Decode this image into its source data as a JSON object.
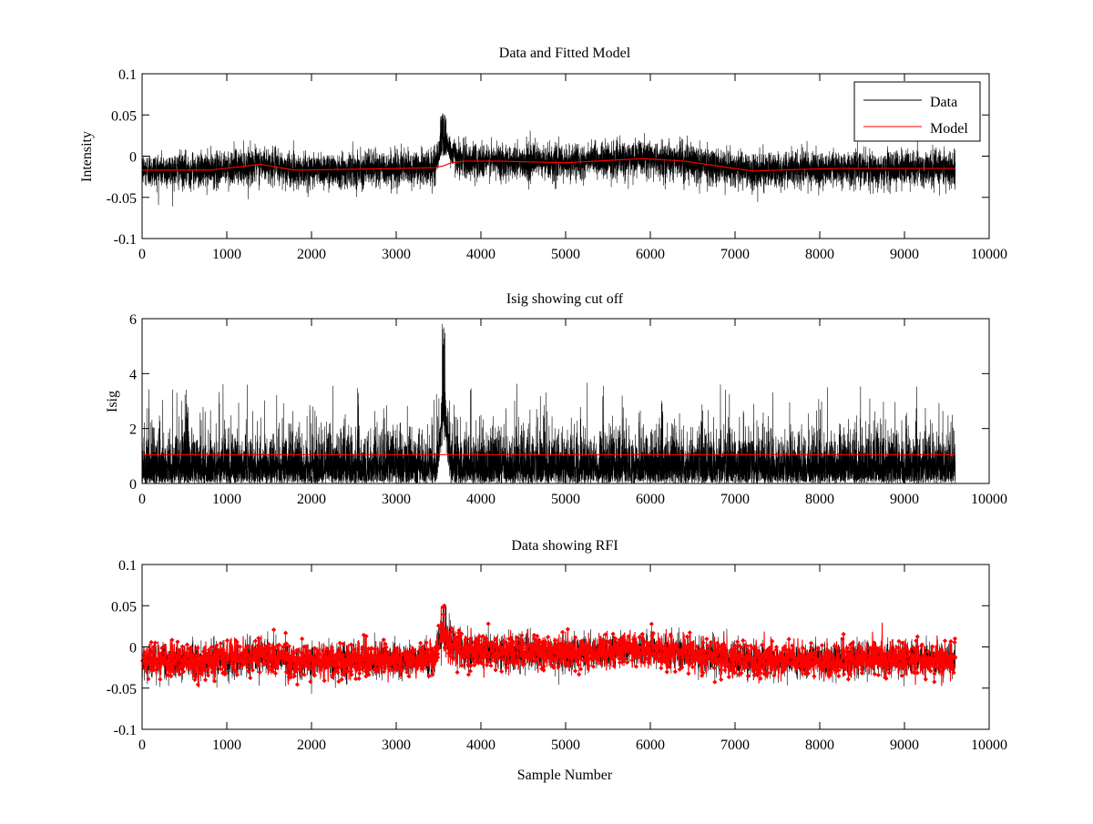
{
  "chart_data": [
    {
      "type": "line",
      "title": "Data and Fitted Model",
      "xlabel": "",
      "ylabel": "Intensity",
      "xlim": [
        0,
        10000
      ],
      "ylim": [
        -0.1,
        0.1
      ],
      "x_ticks": [
        0,
        1000,
        2000,
        3000,
        4000,
        5000,
        6000,
        7000,
        8000,
        9000,
        10000
      ],
      "x_tick_labels": [
        "0",
        "1000",
        "2000",
        "3000",
        "4000",
        "5000",
        "6000",
        "7000",
        "8000",
        "9000",
        "10000"
      ],
      "y_ticks": [
        -0.1,
        -0.05,
        0,
        0.05,
        0.1
      ],
      "y_tick_labels": [
        "-0.1",
        "-0.05",
        "0",
        "0.05",
        "0.1"
      ],
      "grid": false,
      "legend_position": "top-right",
      "series": [
        {
          "name": "Data",
          "color": "#000000",
          "x_range": [
            0,
            9600
          ],
          "n_points": 9600,
          "spread": 0.015,
          "baseline_x": [
            0,
            800,
            1400,
            1800,
            2400,
            3000,
            3450,
            3550,
            3650,
            3800,
            4200,
            5000,
            5900,
            6400,
            6800,
            7200,
            7800,
            8200,
            9000,
            9600
          ],
          "baseline_y": [
            -0.017,
            -0.017,
            -0.01,
            -0.017,
            -0.016,
            -0.015,
            -0.014,
            0.02,
            0.005,
            -0.006,
            -0.006,
            -0.008,
            -0.003,
            -0.006,
            -0.012,
            -0.018,
            -0.016,
            -0.015,
            -0.015,
            -0.015
          ],
          "peak_x": 3560,
          "peak_y": 0.053
        },
        {
          "name": "Model",
          "color": "#ff0000",
          "x": [
            0,
            800,
            1400,
            1800,
            2400,
            3000,
            3450,
            3550,
            3650,
            3800,
            4200,
            5000,
            5900,
            6400,
            6800,
            7200,
            7800,
            8200,
            9000,
            9600
          ],
          "y": [
            -0.017,
            -0.017,
            -0.01,
            -0.017,
            -0.016,
            -0.015,
            -0.014,
            -0.012,
            -0.008,
            -0.006,
            -0.006,
            -0.008,
            -0.003,
            -0.006,
            -0.012,
            -0.018,
            -0.016,
            -0.015,
            -0.015,
            -0.015
          ]
        }
      ]
    },
    {
      "type": "line",
      "title": "Isig showing cut off",
      "xlabel": "",
      "ylabel": "Isig",
      "xlim": [
        0,
        10000
      ],
      "ylim": [
        0,
        6
      ],
      "x_ticks": [
        0,
        1000,
        2000,
        3000,
        4000,
        5000,
        6000,
        7000,
        8000,
        9000,
        10000
      ],
      "x_tick_labels": [
        "0",
        "1000",
        "2000",
        "3000",
        "4000",
        "5000",
        "6000",
        "7000",
        "8000",
        "9000",
        "10000"
      ],
      "y_ticks": [
        0,
        2,
        4,
        6
      ],
      "y_tick_labels": [
        "0",
        "2",
        "4",
        "6"
      ],
      "grid": false,
      "cutoff": 1.05,
      "series": [
        {
          "color": "#000000",
          "x_range": [
            0,
            9600
          ],
          "n_points": 9600,
          "typical_max": 2.4,
          "outlier_max": 3.7,
          "peak_x": 3560,
          "peak_y": 5.85
        },
        {
          "color": "#ff0000",
          "x": [
            0,
            9600
          ],
          "y": [
            1.05,
            1.05
          ]
        }
      ]
    },
    {
      "type": "scatter",
      "title": "Data showing RFI",
      "xlabel": "Sample Number",
      "ylabel": "",
      "xlim": [
        0,
        10000
      ],
      "ylim": [
        -0.1,
        0.1
      ],
      "x_ticks": [
        0,
        1000,
        2000,
        3000,
        4000,
        5000,
        6000,
        7000,
        8000,
        9000,
        10000
      ],
      "x_tick_labels": [
        "0",
        "1000",
        "2000",
        "3000",
        "4000",
        "5000",
        "6000",
        "7000",
        "8000",
        "9000",
        "10000"
      ],
      "y_ticks": [
        -0.1,
        -0.05,
        0,
        0.05,
        0.1
      ],
      "y_tick_labels": [
        "-0.1",
        "-0.05",
        "0",
        "0.05",
        "0.1"
      ],
      "grid": false,
      "series": [
        {
          "color": "#000000",
          "marker": "line",
          "x_range": [
            0,
            9600
          ],
          "n_points": 9600
        },
        {
          "color": "#ff0000",
          "marker": "dot",
          "x_range": [
            0,
            9600
          ],
          "n_points": 1800
        }
      ]
    }
  ]
}
